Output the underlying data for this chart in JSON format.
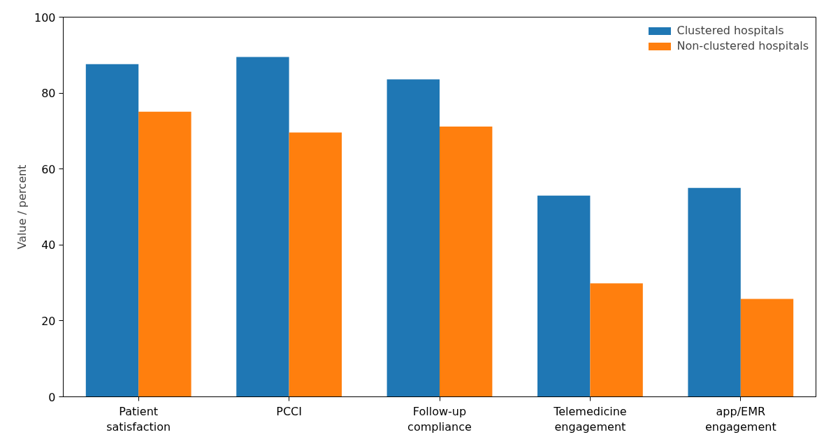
{
  "chart_data": {
    "type": "bar",
    "ylabel": "Value / percent",
    "categories": [
      "Patient\nsatisfaction",
      "PCCI",
      "Follow-up\ncompliance",
      "Telemedicine\nengagement",
      "app/EMR\nengagement"
    ],
    "series": [
      {
        "name": "Clustered hospitals",
        "color": "#1f77b4",
        "values": [
          87.6,
          89.5,
          83.6,
          53.0,
          55.0
        ]
      },
      {
        "name": "Non-clustered hospitals",
        "color": "#ff7f0e",
        "values": [
          75.1,
          69.6,
          71.2,
          29.9,
          25.8
        ]
      }
    ],
    "ylim": [
      0,
      100
    ],
    "yticks": [
      0,
      20,
      40,
      60,
      80,
      100
    ],
    "grid": false,
    "legend": "top right"
  }
}
